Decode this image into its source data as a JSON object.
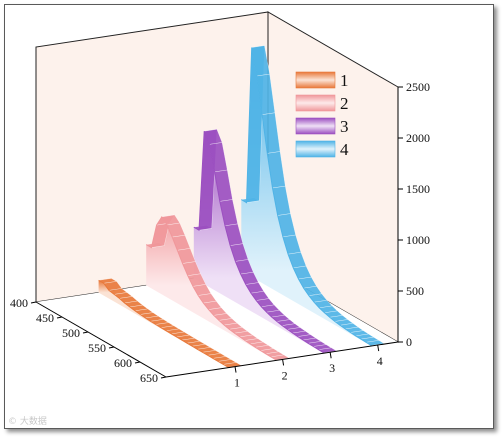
{
  "chart_data": {
    "type": "area",
    "view": "3d-waterfall",
    "x": [
      400,
      410,
      420,
      430,
      440,
      450,
      460,
      470,
      480,
      490,
      500,
      510,
      520,
      530,
      540,
      550,
      560,
      570,
      580,
      590,
      600,
      610,
      620,
      630,
      640,
      650
    ],
    "xlim": [
      400,
      650
    ],
    "x_ticks": [
      "400",
      "450",
      "500",
      "550",
      "600",
      "650"
    ],
    "zlim": [
      0,
      2500
    ],
    "z_ticks": [
      "0",
      "500",
      "1000",
      "1500",
      "2000",
      "2500"
    ],
    "depth_ticks": [
      "1",
      "2",
      "3",
      "4"
    ],
    "series": [
      {
        "name": "1",
        "color_top": "#e8783a",
        "color_bottom": "#fbe3d5",
        "values": [
          120,
          120,
          80,
          70,
          60,
          45,
          35,
          27,
          20,
          15,
          12,
          10,
          8,
          7,
          6,
          5,
          4,
          3,
          3,
          2,
          2,
          2,
          1,
          1,
          1,
          1
        ]
      },
      {
        "name": "2",
        "color_top": "#f0979a",
        "color_bottom": "#fde9ea",
        "values": [
          400,
          400,
          650,
          760,
          710,
          620,
          520,
          420,
          330,
          255,
          195,
          150,
          115,
          88,
          68,
          52,
          40,
          31,
          24,
          18,
          14,
          11,
          8,
          6,
          5,
          4
        ]
      },
      {
        "name": "3",
        "color_top": "#9b4fc0",
        "color_bottom": "#efe0f6",
        "values": [
          500,
          500,
          1500,
          1400,
          1160,
          900,
          690,
          525,
          400,
          305,
          232,
          176,
          134,
          102,
          78,
          60,
          46,
          35,
          27,
          21,
          16,
          12,
          9,
          7,
          5,
          4
        ]
      },
      {
        "name": "4",
        "color_top": "#4fb3e6",
        "color_bottom": "#e0f2fb",
        "values": [
          700,
          700,
          2250,
          2000,
          1650,
          1300,
          990,
          750,
          570,
          430,
          325,
          245,
          185,
          140,
          106,
          80,
          61,
          46,
          35,
          27,
          20,
          15,
          11,
          9,
          7,
          5
        ]
      }
    ],
    "legend": {
      "position": "top-right",
      "entries": [
        "1",
        "2",
        "3",
        "4"
      ]
    },
    "colors": {
      "background": "#fdf2ec",
      "axis": "#000000"
    }
  },
  "watermark": "© 大数据"
}
